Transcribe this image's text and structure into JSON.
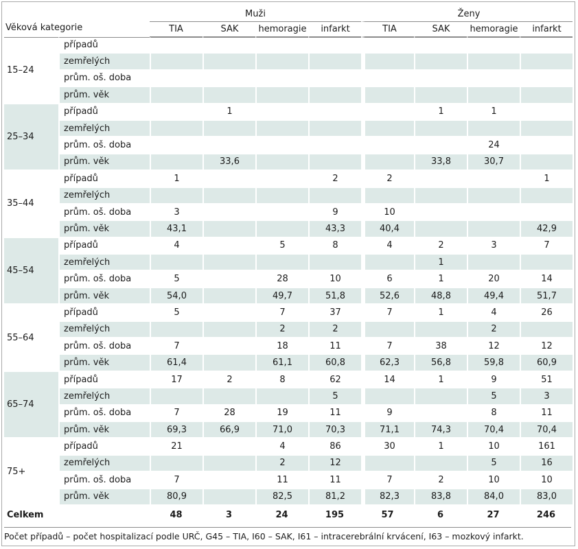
{
  "header": {
    "age_category": "Věková kategorie",
    "groups": [
      "Muži",
      "Ženy"
    ],
    "columns": [
      "TIA",
      "SAK",
      "hemoragie",
      "infarkt",
      "TIA",
      "SAK",
      "hemoragie",
      "infarkt"
    ]
  },
  "row_labels": [
    "případů",
    "zemřelých",
    "prům. oš. doba",
    "prům. věk"
  ],
  "groups": [
    {
      "age": "15–24",
      "rows": [
        [
          "",
          "",
          "",
          "",
          "",
          "",
          "",
          ""
        ],
        [
          "",
          "",
          "",
          "",
          "",
          "",
          "",
          ""
        ],
        [
          "",
          "",
          "",
          "",
          "",
          "",
          "",
          ""
        ],
        [
          "",
          "",
          "",
          "",
          "",
          "",
          "",
          ""
        ]
      ]
    },
    {
      "age": "25–34",
      "rows": [
        [
          "",
          "1",
          "",
          "",
          "",
          "1",
          "1",
          ""
        ],
        [
          "",
          "",
          "",
          "",
          "",
          "",
          "",
          ""
        ],
        [
          "",
          "",
          "",
          "",
          "",
          "",
          "24",
          ""
        ],
        [
          "",
          "33,6",
          "",
          "",
          "",
          "33,8",
          "30,7",
          ""
        ]
      ]
    },
    {
      "age": "35–44",
      "rows": [
        [
          "1",
          "",
          "",
          "2",
          "2",
          "",
          "",
          "1"
        ],
        [
          "",
          "",
          "",
          "",
          "",
          "",
          "",
          ""
        ],
        [
          "3",
          "",
          "",
          "9",
          "10",
          "",
          "",
          ""
        ],
        [
          "43,1",
          "",
          "",
          "43,3",
          "40,4",
          "",
          "",
          "42,9"
        ]
      ]
    },
    {
      "age": "45–54",
      "rows": [
        [
          "4",
          "",
          "5",
          "8",
          "4",
          "2",
          "3",
          "7"
        ],
        [
          "",
          "",
          "",
          "",
          "",
          "1",
          "",
          ""
        ],
        [
          "5",
          "",
          "28",
          "10",
          "6",
          "1",
          "20",
          "14"
        ],
        [
          "54,0",
          "",
          "49,7",
          "51,8",
          "52,6",
          "48,8",
          "49,4",
          "51,7"
        ]
      ]
    },
    {
      "age": "55–64",
      "rows": [
        [
          "5",
          "",
          "7",
          "37",
          "7",
          "1",
          "4",
          "26"
        ],
        [
          "",
          "",
          "2",
          "2",
          "",
          "",
          "2",
          ""
        ],
        [
          "7",
          "",
          "18",
          "11",
          "7",
          "38",
          "12",
          "12"
        ],
        [
          "61,4",
          "",
          "61,1",
          "60,8",
          "62,3",
          "56,8",
          "59,8",
          "60,9"
        ]
      ]
    },
    {
      "age": "65–74",
      "rows": [
        [
          "17",
          "2",
          "8",
          "62",
          "14",
          "1",
          "9",
          "51"
        ],
        [
          "",
          "",
          "",
          "5",
          "",
          "",
          "5",
          "3"
        ],
        [
          "7",
          "28",
          "19",
          "11",
          "9",
          "",
          "8",
          "11"
        ],
        [
          "69,3",
          "66,9",
          "71,0",
          "70,3",
          "71,1",
          "74,3",
          "70,4",
          "70,4"
        ]
      ]
    },
    {
      "age": "75+",
      "rows": [
        [
          "21",
          "",
          "4",
          "86",
          "30",
          "1",
          "10",
          "161"
        ],
        [
          "",
          "",
          "2",
          "12",
          "",
          "",
          "5",
          "16"
        ],
        [
          "7",
          "",
          "11",
          "11",
          "7",
          "2",
          "10",
          "10"
        ],
        [
          "80,9",
          "",
          "82,5",
          "81,2",
          "82,3",
          "83,8",
          "84,0",
          "83,0"
        ]
      ]
    }
  ],
  "total": {
    "label": "Celkem",
    "values": [
      "48",
      "3",
      "24",
      "195",
      "57",
      "6",
      "27",
      "246"
    ]
  },
  "footnote": "Počet případů – počet hospitalizací podle URČ, G45 – TIA, I60 – SAK, I61 – intracerebrální krvácení, I63 – mozkový infarkt.",
  "colors": {
    "row_shade": "#dde9e7",
    "rule": "#8a8a8a"
  }
}
